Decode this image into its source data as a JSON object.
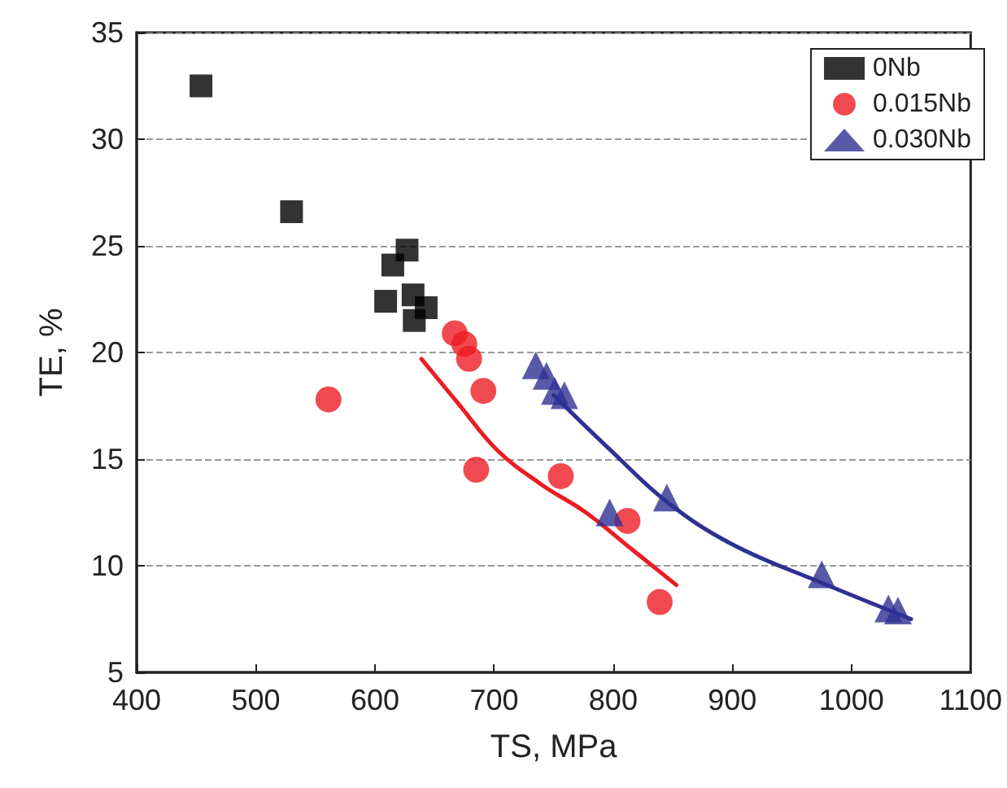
{
  "chart_data": {
    "type": "scatter",
    "xlabel": "TS, MPa",
    "ylabel": "TE, %",
    "xlim": [
      400,
      1100
    ],
    "xticks": [
      400,
      500,
      600,
      700,
      800,
      900,
      1000,
      1100
    ],
    "ylim": [
      5,
      35
    ],
    "yticks": [
      5,
      10,
      15,
      20,
      25,
      30,
      35
    ],
    "grid": "y",
    "legend": "top right",
    "series": [
      {
        "name": "0Nb",
        "color": "#000000",
        "marker": "square",
        "x": [
          454,
          530,
          627,
          615,
          609,
          632,
          643,
          633
        ],
        "values": [
          32.5,
          26.6,
          24.8,
          24.1,
          22.4,
          22.7,
          22.1,
          21.5
        ]
      },
      {
        "name": "0.015Nb",
        "color": "#ed1c24",
        "marker": "circle",
        "x": [
          561,
          667,
          675,
          679,
          691,
          685,
          756,
          812,
          839
        ],
        "values": [
          17.8,
          20.9,
          20.4,
          19.7,
          18.2,
          14.5,
          14.2,
          12.1,
          8.3
        ]
      },
      {
        "name": "0.030Nb",
        "color": "#2e3192",
        "marker": "triangle",
        "x": [
          735,
          744,
          751,
          759,
          797,
          845,
          975,
          1031,
          1039
        ],
        "values": [
          19.4,
          18.9,
          18.2,
          18.0,
          12.5,
          13.2,
          9.6,
          8.0,
          7.9
        ]
      },
      {
        "type": "line",
        "color": "#ed1c24",
        "marker": "none",
        "x": [
          639,
          670,
          703,
          740,
          777,
          815,
          853
        ],
        "values": [
          19.7,
          17.6,
          15.4,
          13.8,
          12.5,
          10.8,
          9.1
        ]
      },
      {
        "type": "line",
        "color": "#2e3192",
        "marker": "none",
        "x": [
          750,
          800,
          845,
          900,
          975,
          1050
        ],
        "values": [
          18.0,
          15.3,
          13.0,
          11.0,
          9.2,
          7.5
        ]
      }
    ]
  }
}
